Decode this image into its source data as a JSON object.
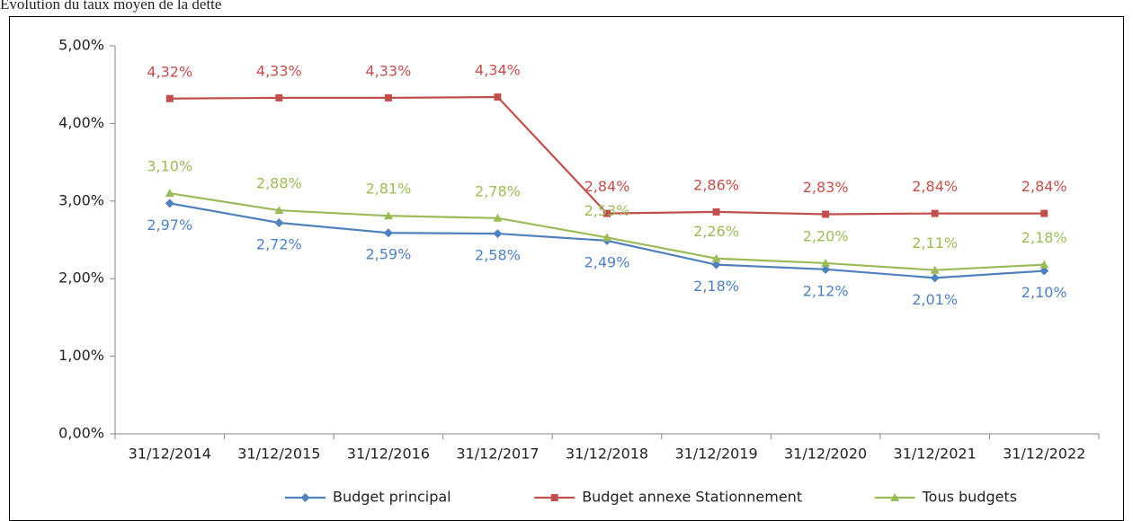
{
  "chart_data": {
    "type": "line",
    "title": "Évolution du taux moyen de la dette",
    "categories": [
      "31/12/2014",
      "31/12/2015",
      "31/12/2016",
      "31/12/2017",
      "31/12/2018",
      "31/12/2019",
      "31/12/2020",
      "31/12/2021",
      "31/12/2022"
    ],
    "series": [
      {
        "name": "Budget principal",
        "color": "#4f81bd",
        "marker": "diamond",
        "label_position": "below",
        "values": [
          2.97,
          2.72,
          2.59,
          2.58,
          2.49,
          2.18,
          2.12,
          2.01,
          2.1
        ],
        "value_labels": [
          "2,97%",
          "2,72%",
          "2,59%",
          "2,58%",
          "2,49%",
          "2,18%",
          "2,12%",
          "2,01%",
          "2,10%"
        ]
      },
      {
        "name": "Budget annexe Stationnement",
        "color": "#c0504d",
        "marker": "square",
        "label_position": "above",
        "values": [
          4.32,
          4.33,
          4.33,
          4.34,
          2.84,
          2.86,
          2.83,
          2.84,
          2.84
        ],
        "value_labels": [
          "4,32%",
          "4,33%",
          "4,33%",
          "4,34%",
          "2,84%",
          "2,86%",
          "2,83%",
          "2,84%",
          "2,84%"
        ]
      },
      {
        "name": "Tous budgets",
        "color": "#9bbb59",
        "marker": "triangle",
        "label_position": "above",
        "values": [
          3.1,
          2.88,
          2.81,
          2.78,
          2.53,
          2.26,
          2.2,
          2.11,
          2.18
        ],
        "value_labels": [
          "3,10%",
          "2,88%",
          "2,81%",
          "2,78%",
          "2,53%",
          "2,26%",
          "2,20%",
          "2,11%",
          "2,18%"
        ]
      }
    ],
    "ylim": [
      0,
      5
    ],
    "yticks": [
      {
        "value": 0,
        "label": "0,00%"
      },
      {
        "value": 1,
        "label": "1,00%"
      },
      {
        "value": 2,
        "label": "2,00%"
      },
      {
        "value": 3,
        "label": "3,00%"
      },
      {
        "value": 4,
        "label": "4,00%"
      },
      {
        "value": 5,
        "label": "5,00%"
      }
    ],
    "grid": false,
    "legend": "bottom"
  }
}
